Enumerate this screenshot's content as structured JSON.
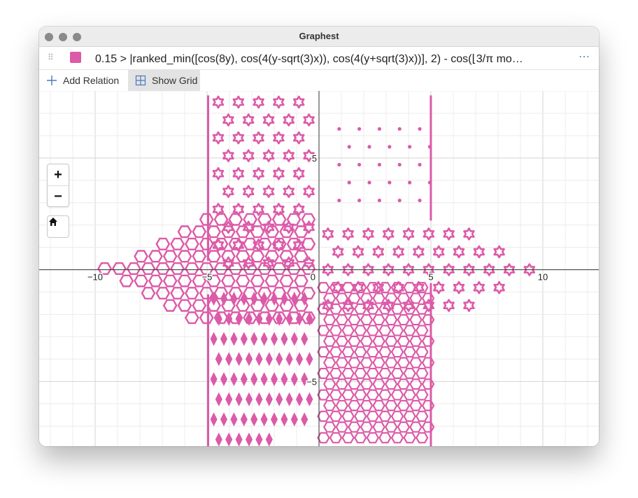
{
  "window": {
    "title": "Graphest"
  },
  "relation": {
    "expression": "0.15 > |ranked_min([cos(8y), cos(4(y-sqrt(3)x)), cos(4(y+sqrt(3)x))], 2) - cos(⌊3/π mo…",
    "color": "#dc5aa8",
    "drag_icon": "drag-handle-icon",
    "menu_icon": "more-options-icon"
  },
  "toolbar": {
    "add_label": "Add Relation",
    "grid_label": "Show Grid",
    "grid_active": true
  },
  "controls": {
    "zoom_in": "+",
    "zoom_out": "−",
    "home_icon": "home-icon"
  },
  "chart_data": {
    "type": "scatter",
    "title": "",
    "xlabel": "",
    "ylabel": "",
    "xlim": [
      -12.5,
      12.5
    ],
    "ylim": [
      -7.9,
      8
    ],
    "grid": true,
    "x_ticks": [
      {
        "value": -10,
        "label": "−10"
      },
      {
        "value": -5,
        "label": "−5"
      },
      {
        "value": 0,
        "label": "0"
      },
      {
        "value": 5,
        "label": "5"
      },
      {
        "value": 10,
        "label": "10"
      }
    ],
    "y_ticks": [
      {
        "value": 5,
        "label": "5"
      },
      {
        "value": -5,
        "label": "−5"
      }
    ],
    "series": [
      {
        "region": "upper-left",
        "x_range": [
          -5,
          0
        ],
        "y_range": [
          0,
          8
        ],
        "pattern": "six-pointed stars"
      },
      {
        "region": "upper-right",
        "x_range": [
          0,
          5
        ],
        "y_range": [
          2,
          8
        ],
        "pattern": "small dots"
      },
      {
        "region": "right",
        "x_range": [
          0,
          10
        ],
        "y_range": [
          -2.5,
          2
        ],
        "pattern": "six-pointed stars"
      },
      {
        "region": "left",
        "x_range": [
          -10,
          0
        ],
        "y_range": [
          -2.5,
          2.8
        ],
        "pattern": "hexagonal lattice"
      },
      {
        "region": "lower-left",
        "x_range": [
          -5,
          0
        ],
        "y_range": [
          -7.9,
          -1
        ],
        "pattern": "diamonds"
      },
      {
        "region": "lower-right",
        "x_range": [
          0,
          5
        ],
        "y_range": [
          -7.9,
          -0.5
        ],
        "pattern": "hexagram lattice"
      }
    ]
  }
}
